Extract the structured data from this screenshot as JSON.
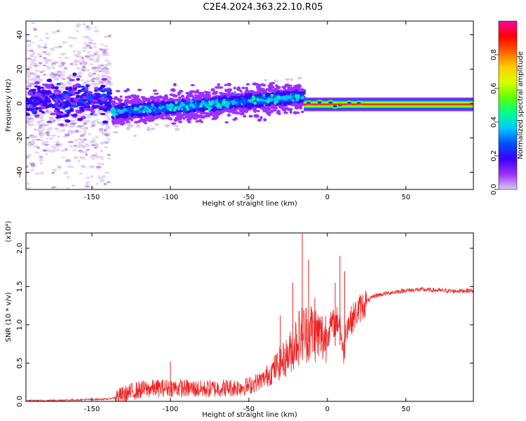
{
  "figure_title": "C2E4.2024.363.22.10.R05",
  "colors": {
    "snr_line": "#ee2222",
    "spectral_ridge": "#ff2a2a"
  },
  "chart_data": [
    {
      "type": "heatmap",
      "xlabel": "Height of straight line (km)",
      "ylabel": "Frequency (Hz)",
      "xlim": [
        -192,
        93
      ],
      "ylim": [
        -50,
        48
      ],
      "x_ticks": [
        -150,
        -100,
        -50,
        0,
        50
      ],
      "x_tick_labels": [
        "-150",
        "-100",
        "-50",
        "0",
        "50"
      ],
      "y_ticks": [
        -40,
        -20,
        0,
        20,
        40
      ],
      "y_tick_labels": [
        "-40",
        "-20",
        "0",
        "20",
        "40"
      ],
      "grid": false,
      "colorbar": {
        "label": "Normalized spectral amplitude",
        "range": [
          0,
          1
        ],
        "ticks": [
          0.0,
          0.2,
          0.4,
          0.6,
          0.8
        ],
        "tick_labels": [
          "0.0",
          "0.2",
          "0.4",
          "0.6",
          "0.8"
        ],
        "colormap": [
          "#dcc8f0",
          "#9b30ff",
          "#3a00ff",
          "#0050ff",
          "#00c8ff",
          "#00ff90",
          "#60ff00",
          "#d8ff00",
          "#ffcc00",
          "#ff6000",
          "#ff0000",
          "#ff00a0"
        ]
      },
      "bands": [
        {
          "x_range": [
            -192,
            -138
          ],
          "f_center": 0,
          "f_spread": 45,
          "amplitude": 0.1
        },
        {
          "x_range": [
            -192,
            -138
          ],
          "f_center": 2,
          "f_spread": 8,
          "amplitude": 0.2
        },
        {
          "x_range": [
            -137,
            -15
          ],
          "f_center": 0,
          "f_spread": 8,
          "amplitude": 0.3
        },
        {
          "x_range": [
            -15,
            93
          ],
          "f_center": -0.5,
          "f_spread": 1.5,
          "amplitude": 1.0
        }
      ]
    },
    {
      "type": "line",
      "xlabel": "Height of straight line (km)",
      "ylabel": "SNR (10 * v/v)",
      "y_multiplier": "(x10⁴)",
      "xlim": [
        -192,
        93
      ],
      "ylim": [
        0,
        2.2
      ],
      "x_ticks": [
        -150,
        -100,
        -50,
        0,
        50
      ],
      "x_tick_labels": [
        "-150",
        "-100",
        "-50",
        "0",
        "50"
      ],
      "y_ticks": [
        0.0,
        0.5,
        1.0,
        1.5,
        2.0
      ],
      "y_tick_labels": [
        "0.0",
        "0.5",
        "1.0",
        "1.5",
        "2.0"
      ],
      "grid": false,
      "series": [
        {
          "x": [
            -192,
            -180,
            -160,
            -140,
            -135,
            -130,
            -125,
            -120,
            -110,
            -100,
            -90,
            -80,
            -70,
            -60,
            -50,
            -45,
            -40,
            -35,
            -30,
            -25,
            -22,
            -20,
            -18,
            -15,
            -12,
            -10,
            -8,
            -5,
            -2,
            0,
            3,
            6,
            8,
            10,
            12,
            15,
            20,
            25,
            30,
            40,
            50,
            60,
            70,
            80,
            93
          ],
          "y": [
            0.01,
            0.01,
            0.02,
            0.03,
            0.05,
            0.08,
            0.12,
            0.15,
            0.17,
            0.18,
            0.17,
            0.16,
            0.17,
            0.18,
            0.2,
            0.25,
            0.3,
            0.4,
            0.5,
            0.6,
            0.7,
            0.8,
            0.85,
            0.9,
            0.9,
            0.92,
            0.9,
            0.85,
            0.82,
            0.9,
            1.0,
            1.05,
            1.05,
            0.6,
            1.0,
            1.05,
            1.2,
            1.3,
            1.38,
            1.42,
            1.45,
            1.46,
            1.45,
            1.44,
            1.45
          ]
        }
      ],
      "spikes": [
        {
          "x": -100,
          "y": 0.52
        },
        {
          "x": -30,
          "y": 1.12
        },
        {
          "x": -22,
          "y": 1.55
        },
        {
          "x": -16,
          "y": 2.2
        },
        {
          "x": -12,
          "y": 1.85
        },
        {
          "x": -8,
          "y": 1.35
        },
        {
          "x": 5,
          "y": 1.55
        },
        {
          "x": 8,
          "y": 1.9
        },
        {
          "x": 11,
          "y": 1.7
        }
      ]
    }
  ]
}
